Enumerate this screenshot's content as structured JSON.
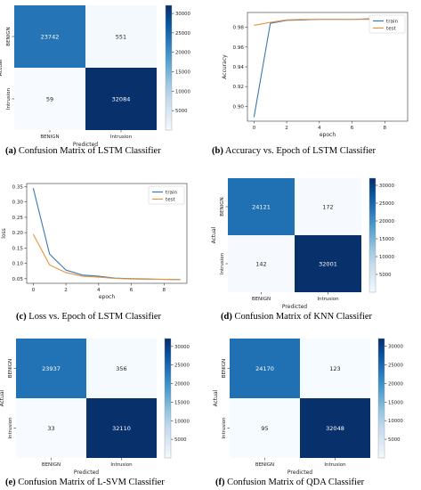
{
  "chart_data": [
    {
      "id": "a",
      "type": "heatmap",
      "caption_label": "(a)",
      "caption_text": "Confusion Matrix of LSTM Classifier",
      "xlabel": "Predicted",
      "ylabel": "Actual",
      "x_categories": [
        "BENIGN",
        "Intrusion"
      ],
      "y_categories": [
        "BENIGN",
        "Intrusion"
      ],
      "values": [
        [
          23742,
          551
        ],
        [
          59,
          32084
        ]
      ],
      "colorbar_ticks": [
        5000,
        10000,
        15000,
        20000,
        25000,
        30000
      ],
      "colorbar_range": [
        0,
        32084
      ]
    },
    {
      "id": "b",
      "type": "line",
      "caption_label": "(b)",
      "caption_text": "Accuracy vs. Epoch of LSTM Classifier",
      "xlabel": "epoch",
      "ylabel": "Accuracy",
      "xlim": [
        -0.4,
        9.4
      ],
      "ylim": [
        0.885,
        0.995
      ],
      "x_ticks": [
        0,
        2,
        4,
        6,
        8
      ],
      "y_ticks": [
        0.9,
        0.92,
        0.94,
        0.96,
        0.98
      ],
      "y_tick_labels": [
        "0.90",
        "0.92",
        "0.94",
        "0.96",
        "0.98"
      ],
      "legend_position": "top-right",
      "grid": false,
      "x": [
        0,
        1,
        2,
        3,
        4,
        5,
        6,
        7,
        8,
        9
      ],
      "series": [
        {
          "name": "train",
          "color": "#3a78b0",
          "values": [
            0.889,
            0.984,
            0.987,
            0.9875,
            0.988,
            0.988,
            0.988,
            0.9885,
            0.9885,
            0.989
          ]
        },
        {
          "name": "test",
          "color": "#e8963c",
          "values": [
            0.982,
            0.985,
            0.9875,
            0.988,
            0.988,
            0.988,
            0.988,
            0.988,
            0.988,
            0.988
          ]
        }
      ]
    },
    {
      "id": "c",
      "type": "line",
      "caption_label": "(c)",
      "caption_text": "Loss vs. Epoch of LSTM Classifier",
      "xlabel": "epoch",
      "ylabel": "loss",
      "xlim": [
        -0.4,
        9.4
      ],
      "ylim": [
        0.035,
        0.36
      ],
      "x_ticks": [
        0,
        2,
        4,
        6,
        8
      ],
      "y_ticks": [
        0.05,
        0.1,
        0.15,
        0.2,
        0.25,
        0.3,
        0.35
      ],
      "y_tick_labels": [
        "0.05",
        "0.10",
        "0.15",
        "0.20",
        "0.25",
        "0.30",
        "0.35"
      ],
      "legend_position": "top-right",
      "grid": false,
      "x": [
        0,
        1,
        2,
        3,
        4,
        5,
        6,
        7,
        8,
        9
      ],
      "series": [
        {
          "name": "train",
          "color": "#3a78b0",
          "values": [
            0.345,
            0.13,
            0.078,
            0.062,
            0.058,
            0.052,
            0.05,
            0.049,
            0.048,
            0.047
          ]
        },
        {
          "name": "test",
          "color": "#e8963c",
          "values": [
            0.195,
            0.095,
            0.07,
            0.058,
            0.055,
            0.051,
            0.049,
            0.048,
            0.048,
            0.047
          ]
        }
      ]
    },
    {
      "id": "d",
      "type": "heatmap",
      "caption_label": "(d)",
      "caption_text": "Confusion Matrix of KNN Classifier",
      "xlabel": "Predicted",
      "ylabel": "Actual",
      "x_categories": [
        "BENIGN",
        "Intrusion"
      ],
      "y_categories": [
        "BENIGN",
        "Intrusion"
      ],
      "values": [
        [
          24121,
          172
        ],
        [
          142,
          32001
        ]
      ],
      "colorbar_ticks": [
        5000,
        10000,
        15000,
        20000,
        25000,
        30000
      ],
      "colorbar_range": [
        0,
        32001
      ]
    },
    {
      "id": "e",
      "type": "heatmap",
      "caption_label": "(e)",
      "caption_text": "Confusion Matrix of L-SVM Classifier",
      "xlabel": "Predicted",
      "ylabel": "Actual",
      "x_categories": [
        "BENIGN",
        "Intrusion"
      ],
      "y_categories": [
        "BENIGN",
        "Intrusion"
      ],
      "values": [
        [
          23937,
          356
        ],
        [
          33,
          32110
        ]
      ],
      "colorbar_ticks": [
        5000,
        10000,
        15000,
        20000,
        25000,
        30000
      ],
      "colorbar_range": [
        0,
        32110
      ]
    },
    {
      "id": "f",
      "type": "heatmap",
      "caption_label": "(f)",
      "caption_text": "Confusion Matrix of QDA Classifier",
      "xlabel": "Predicted",
      "ylabel": "Actual",
      "x_categories": [
        "BENIGN",
        "Intrusion"
      ],
      "y_categories": [
        "BENIGN",
        "Intrusion"
      ],
      "values": [
        [
          24170,
          123
        ],
        [
          95,
          32048
        ]
      ],
      "colorbar_ticks": [
        5000,
        10000,
        15000,
        20000,
        25000,
        30000
      ],
      "colorbar_range": [
        0,
        32048
      ]
    }
  ]
}
